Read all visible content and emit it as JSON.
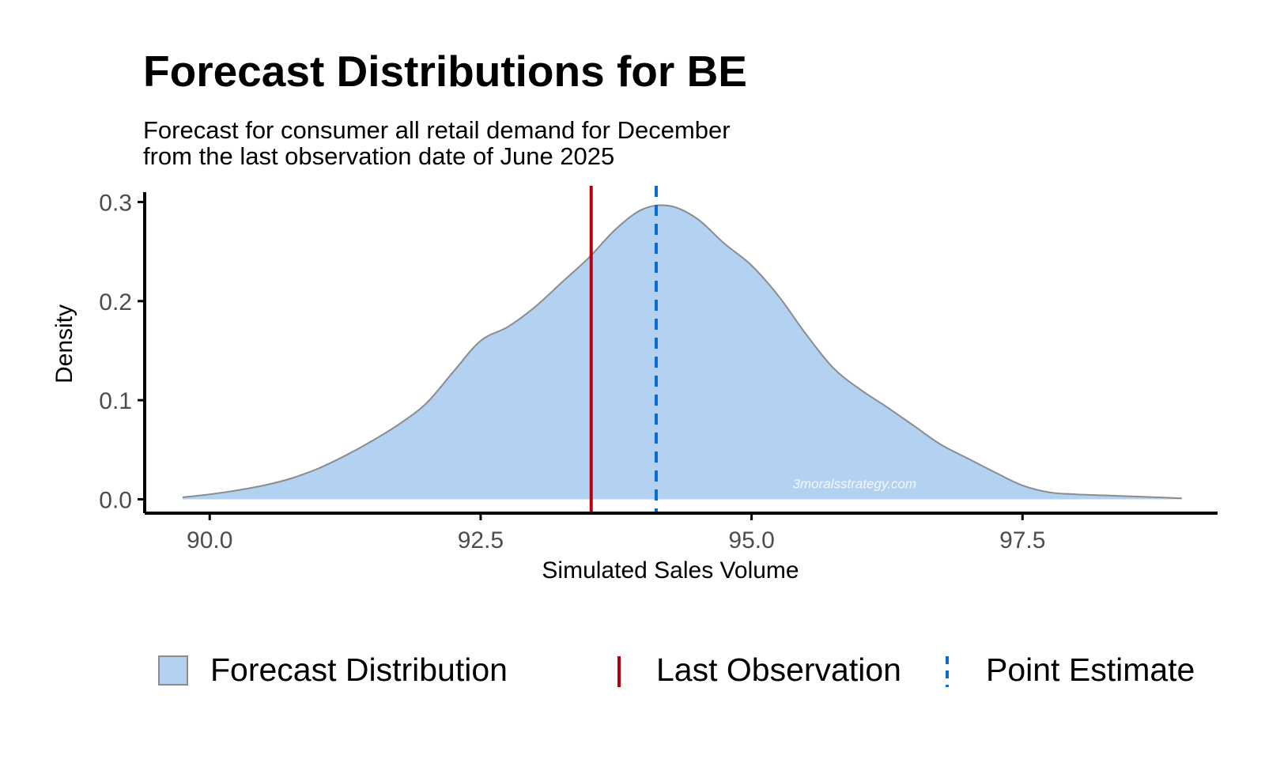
{
  "chart_data": {
    "type": "area",
    "title": "Forecast Distributions for BE",
    "subtitle": [
      "Forecast for consumer all retail demand for December",
      "from the last observation date of June 2025"
    ],
    "xlabel": "Simulated Sales Volume",
    "ylabel": "Density",
    "xlim": [
      89.4,
      99.3
    ],
    "ylim": [
      -0.014,
      0.31
    ],
    "x_ticks": [
      90.0,
      92.5,
      95.0,
      97.5
    ],
    "x_tick_labels": [
      "90.0",
      "92.5",
      "95.0",
      "97.5"
    ],
    "y_ticks": [
      0.0,
      0.1,
      0.2,
      0.3
    ],
    "y_tick_labels": [
      "0.0",
      "0.1",
      "0.2",
      "0.3"
    ],
    "grid": false,
    "legend_position": "bottom",
    "watermark": "3moralsstrategy.com",
    "series": [
      {
        "name": "Forecast Distribution",
        "kind": "density",
        "fill": "#b3d1f0",
        "stroke": "#8c8c8c",
        "x": [
          89.75,
          90.0,
          90.25,
          90.5,
          90.75,
          91.0,
          91.25,
          91.5,
          91.75,
          92.0,
          92.25,
          92.5,
          92.75,
          93.0,
          93.25,
          93.5,
          93.75,
          94.0,
          94.25,
          94.5,
          94.75,
          95.0,
          95.25,
          95.5,
          95.75,
          96.0,
          96.25,
          96.5,
          96.75,
          97.0,
          97.25,
          97.5,
          97.75,
          98.0,
          98.25,
          98.5,
          98.75,
          98.97
        ],
        "y": [
          0.002,
          0.005,
          0.009,
          0.014,
          0.021,
          0.031,
          0.044,
          0.059,
          0.076,
          0.097,
          0.129,
          0.16,
          0.174,
          0.194,
          0.219,
          0.244,
          0.273,
          0.293,
          0.296,
          0.283,
          0.258,
          0.236,
          0.205,
          0.167,
          0.133,
          0.111,
          0.093,
          0.074,
          0.055,
          0.041,
          0.027,
          0.014,
          0.007,
          0.005,
          0.004,
          0.003,
          0.002,
          0.001
        ]
      },
      {
        "name": "Last Observation",
        "kind": "vline",
        "x": 93.52,
        "color": "#b3000f",
        "dash": "solid"
      },
      {
        "name": "Point Estimate",
        "kind": "vline",
        "x": 94.12,
        "color": "#0a6ccf",
        "dash": "dashed"
      }
    ]
  }
}
